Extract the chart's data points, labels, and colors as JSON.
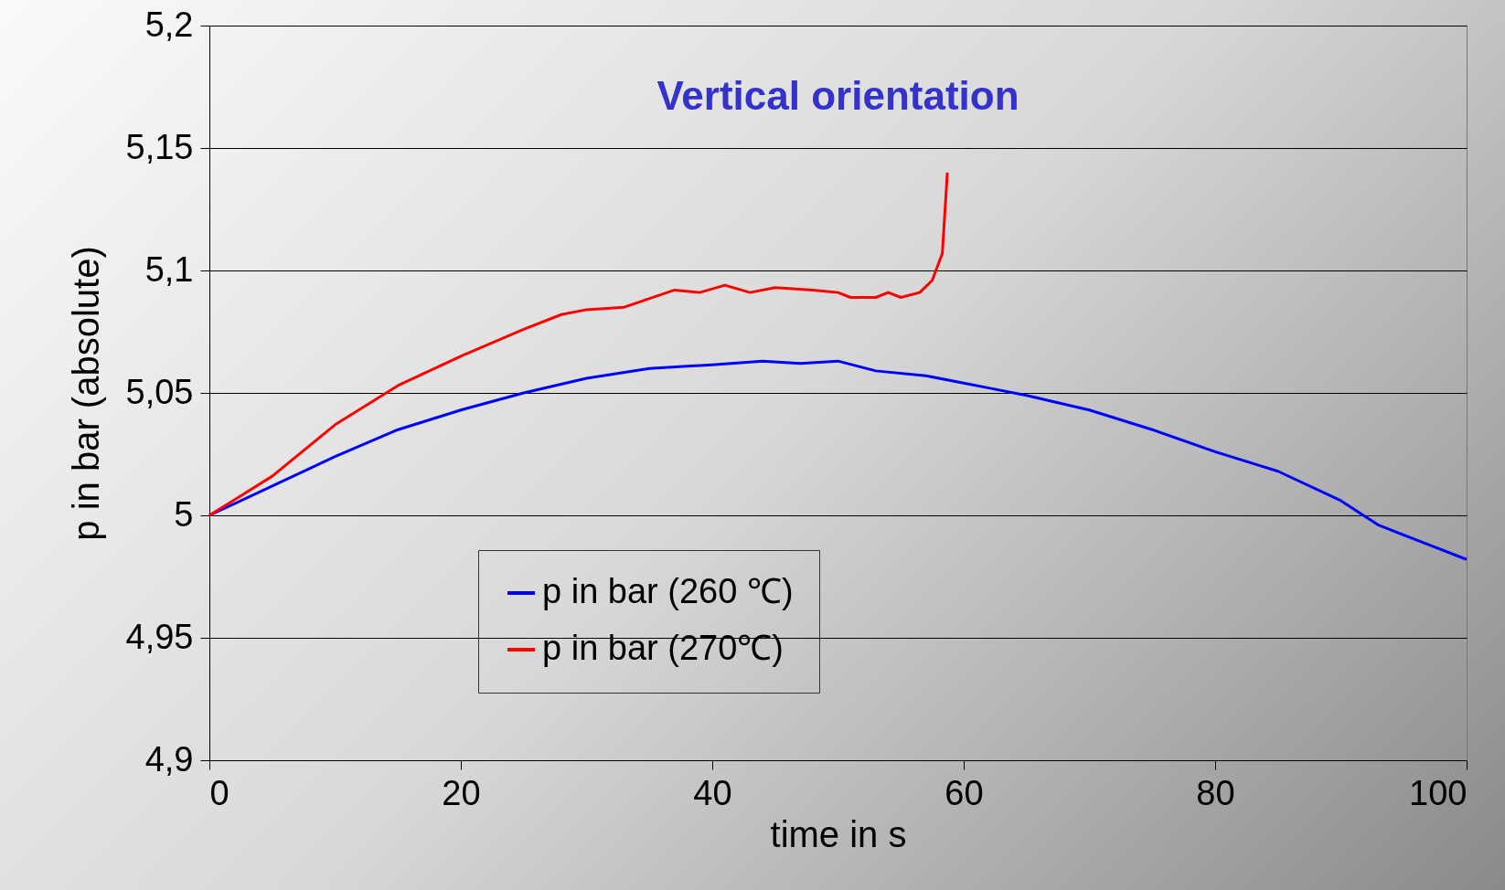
{
  "chart_data": {
    "type": "line",
    "title": "Vertical orientation",
    "xlabel": "time in s",
    "ylabel": "p in bar (absolute)",
    "xlim": [
      0,
      100
    ],
    "xticks": [
      0,
      20,
      40,
      60,
      80,
      100
    ],
    "ylim": [
      4.9,
      5.2
    ],
    "yticks": [
      {
        "value": 4.9,
        "label": "4,9"
      },
      {
        "value": 4.95,
        "label": "4,95"
      },
      {
        "value": 5,
        "label": "5"
      },
      {
        "value": 5.05,
        "label": "5,05"
      },
      {
        "value": 5.1,
        "label": "5,1"
      },
      {
        "value": 5.15,
        "label": "5,15"
      },
      {
        "value": 5.2,
        "label": "5,2"
      }
    ],
    "grid": "y",
    "legend": "bottom",
    "line_style": "solid",
    "series": [
      {
        "name": "p in bar (260 ℃)",
        "color": "#0000ff",
        "x": [
          0,
          5,
          10,
          15,
          20,
          25,
          30,
          35,
          40,
          44,
          47,
          50,
          53,
          57,
          60,
          62,
          65,
          70,
          75,
          80,
          85,
          90,
          93,
          96,
          100
        ],
        "values": [
          5.0,
          5.012,
          5.024,
          5.035,
          5.043,
          5.05,
          5.056,
          5.06,
          5.0615,
          5.063,
          5.062,
          5.063,
          5.059,
          5.057,
          5.054,
          5.052,
          5.049,
          5.043,
          5.035,
          5.026,
          5.018,
          5.006,
          4.996,
          4.99,
          4.982
        ]
      },
      {
        "name": "p in bar (270℃)",
        "color": "#ff0000",
        "x": [
          0,
          5,
          10,
          15,
          20,
          25,
          28,
          30,
          33,
          37,
          39,
          41,
          43,
          45,
          48,
          50,
          51,
          53,
          54,
          55,
          56.5,
          57.5,
          58.3,
          58.7
        ],
        "values": [
          5.0,
          5.016,
          5.037,
          5.053,
          5.065,
          5.076,
          5.082,
          5.084,
          5.085,
          5.092,
          5.091,
          5.094,
          5.091,
          5.093,
          5.092,
          5.091,
          5.089,
          5.089,
          5.091,
          5.089,
          5.091,
          5.096,
          5.107,
          5.14
        ]
      }
    ]
  }
}
